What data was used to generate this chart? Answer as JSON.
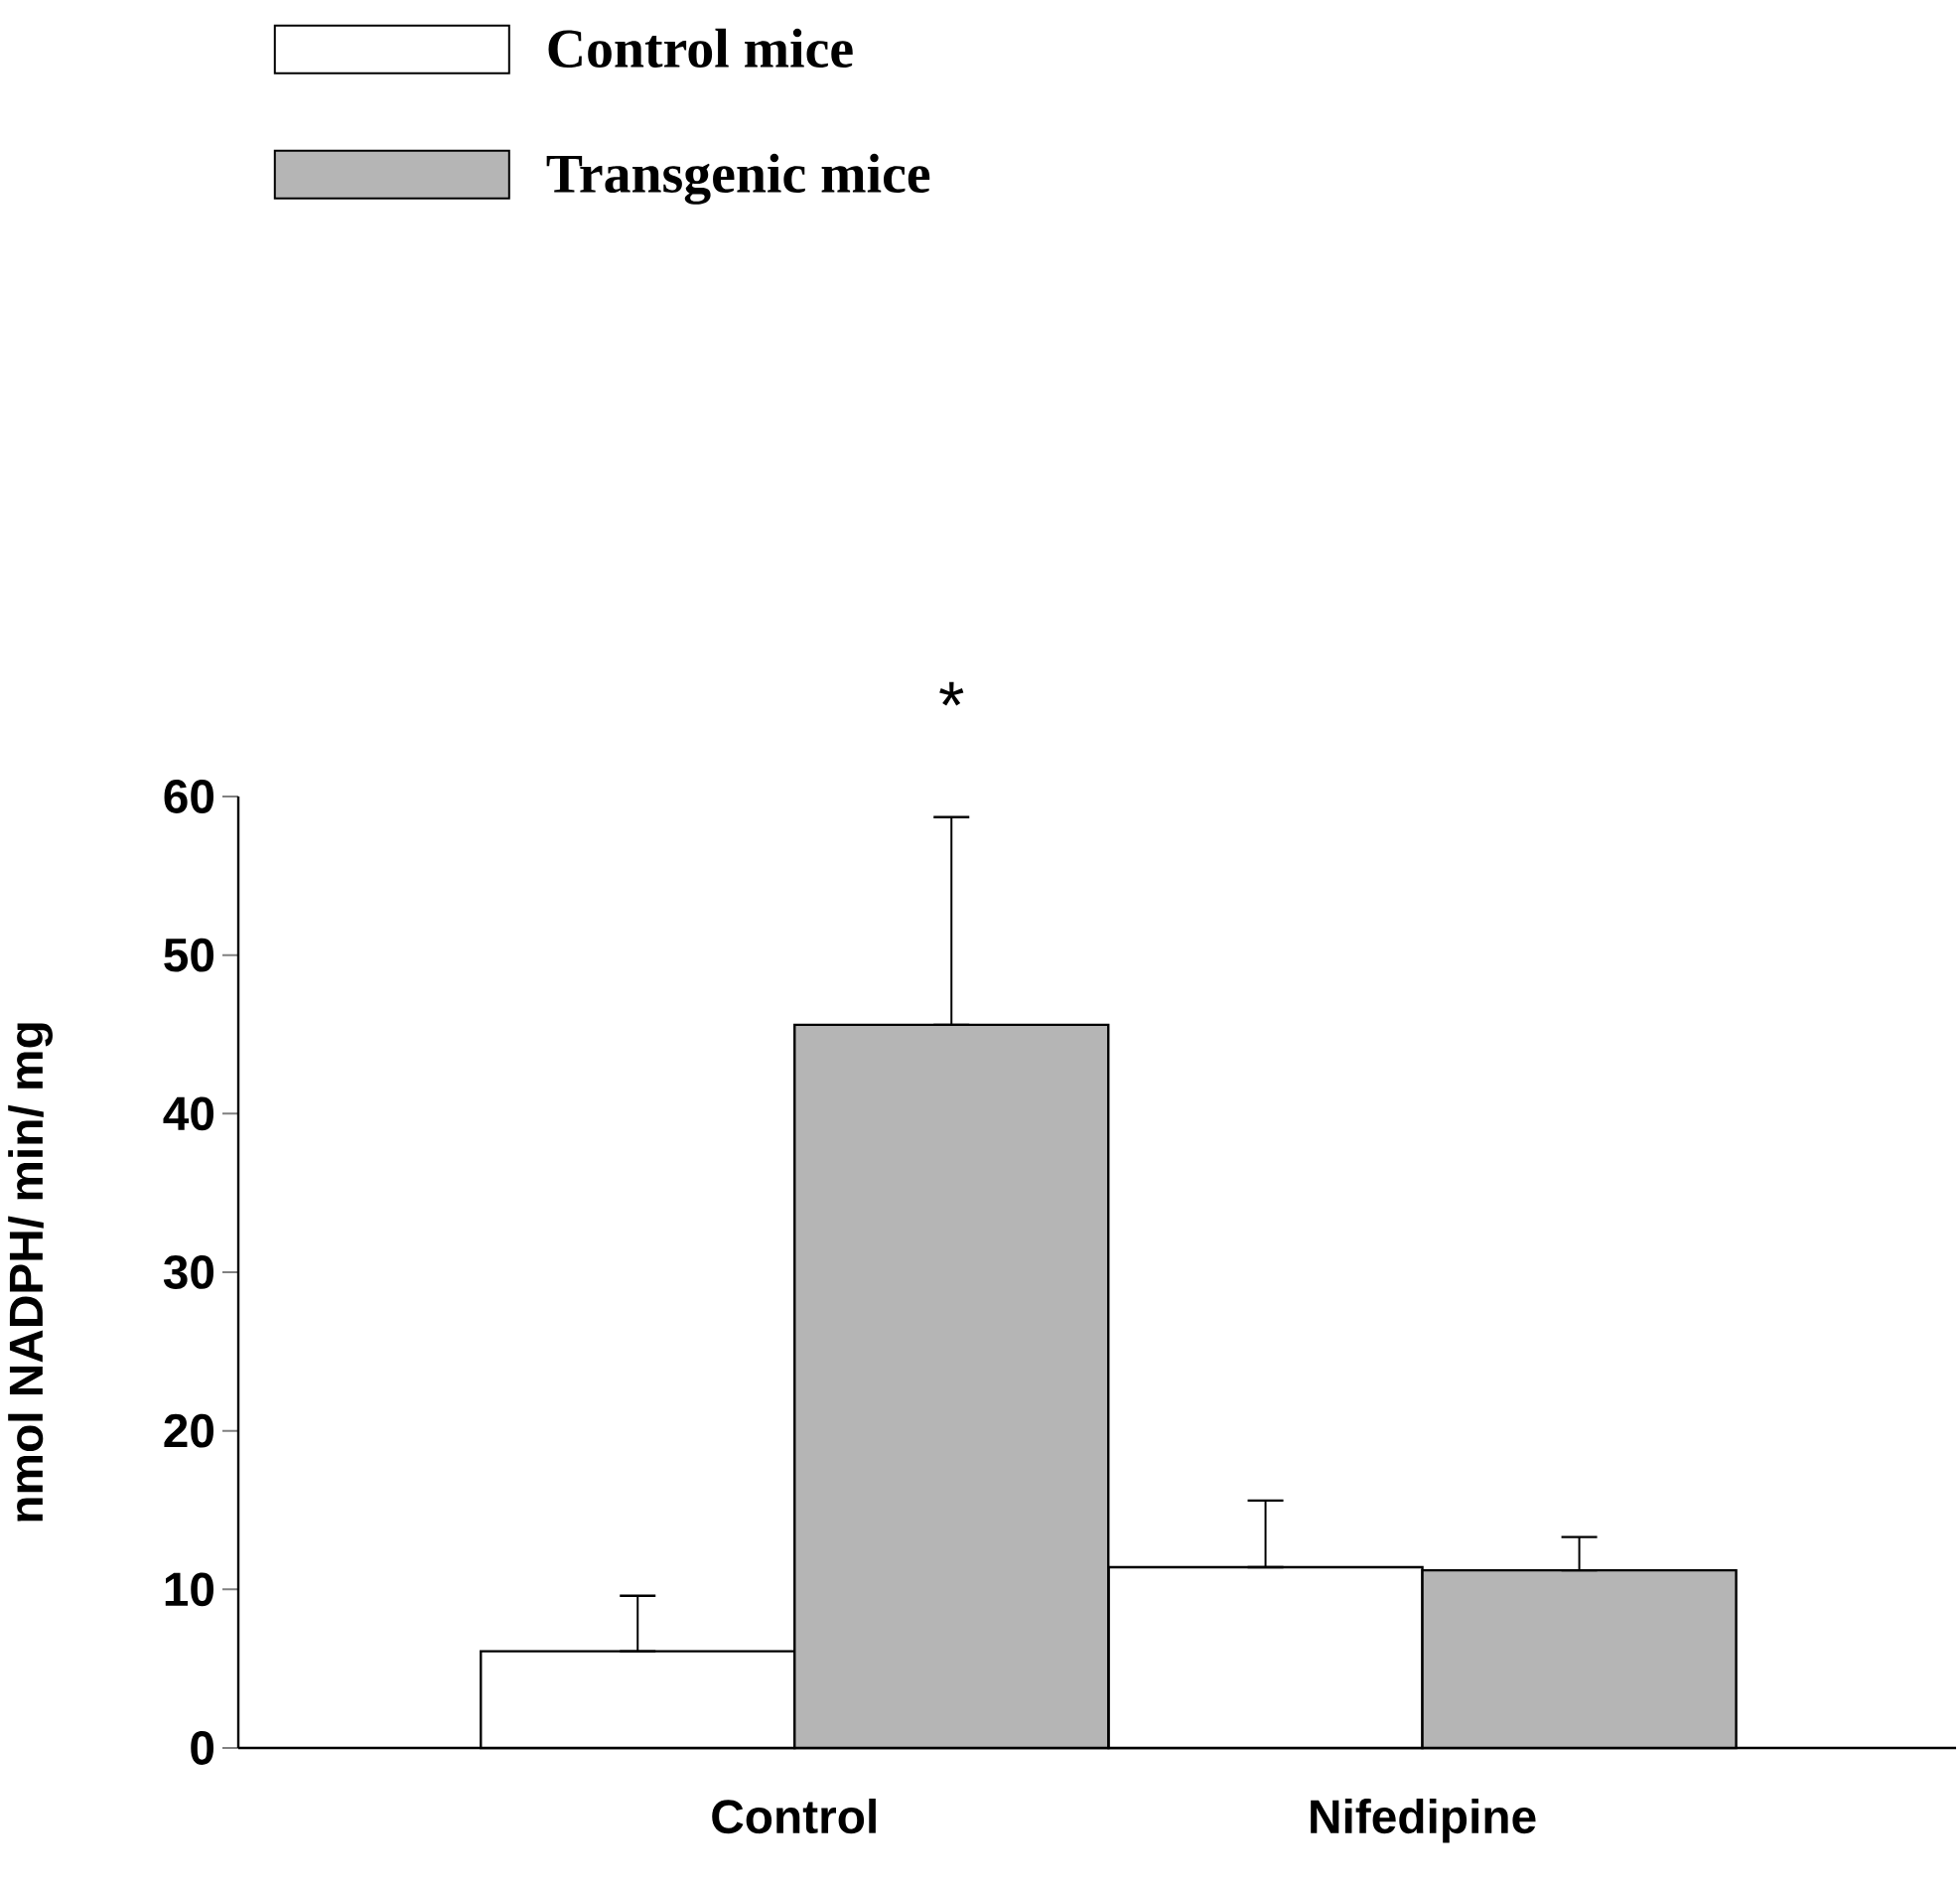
{
  "chart_data": {
    "type": "bar",
    "ylabel": "nmol NADPH/ min/ mg",
    "categories": [
      "Control",
      "Nifedipine"
    ],
    "series": [
      {
        "name": "Control mice",
        "color": "#ffffff",
        "values": [
          6.1,
          11.4
        ],
        "errors": [
          [
            6.1,
            9.6
          ],
          [
            11.4,
            15.6
          ]
        ]
      },
      {
        "name": "Transgenic mice",
        "color": "#b5b5b5",
        "values": [
          45.6,
          11.2
        ],
        "errors": [
          [
            45.6,
            58.7
          ],
          [
            11.2,
            13.3
          ]
        ]
      }
    ],
    "ylim": [
      0,
      60
    ],
    "yticks": [
      0,
      10,
      20,
      30,
      40,
      50,
      60
    ],
    "grid": false,
    "legend": "top left",
    "annotations": [
      "*"
    ]
  }
}
